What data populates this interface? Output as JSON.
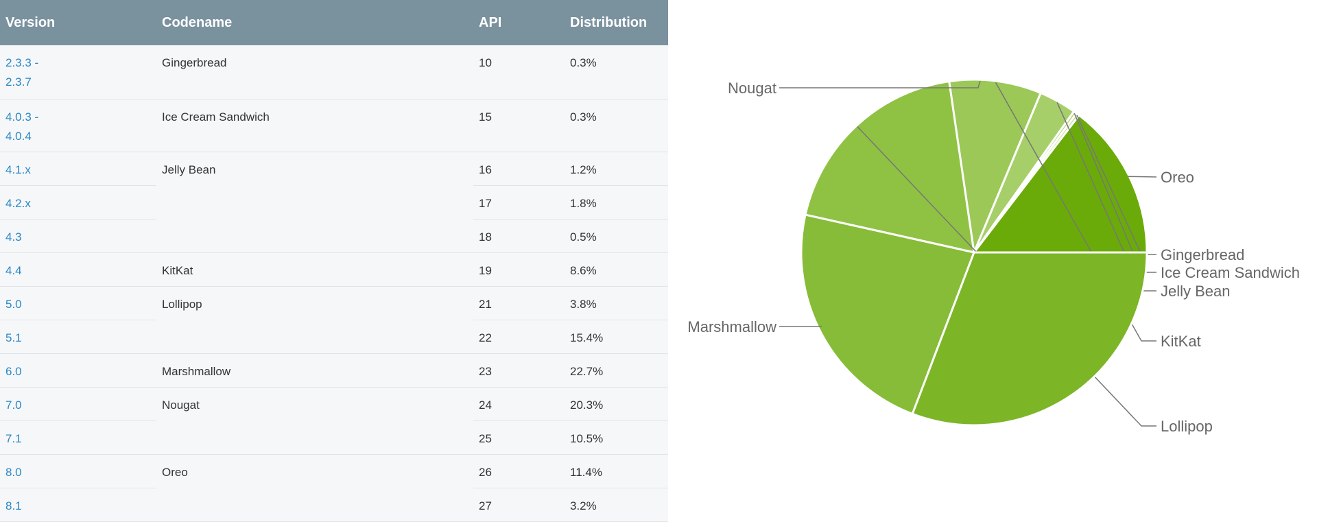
{
  "table": {
    "headers": [
      "Version",
      "Codename",
      "API",
      "Distribution"
    ],
    "rows": [
      {
        "version": "2.3.3 -\n2.3.7",
        "codename": "Gingerbread",
        "codename_span": 1,
        "api": "10",
        "distribution": "0.3%"
      },
      {
        "version": "4.0.3 -\n4.0.4",
        "codename": "Ice Cream Sandwich",
        "codename_span": 1,
        "api": "15",
        "distribution": "0.3%"
      },
      {
        "version": "4.1.x",
        "codename": "Jelly Bean",
        "codename_span": 3,
        "api": "16",
        "distribution": "1.2%"
      },
      {
        "version": "4.2.x",
        "codename": null,
        "api": "17",
        "distribution": "1.8%"
      },
      {
        "version": "4.3",
        "codename": null,
        "api": "18",
        "distribution": "0.5%"
      },
      {
        "version": "4.4",
        "codename": "KitKat",
        "codename_span": 1,
        "api": "19",
        "distribution": "8.6%"
      },
      {
        "version": "5.0",
        "codename": "Lollipop",
        "codename_span": 2,
        "api": "21",
        "distribution": "3.8%"
      },
      {
        "version": "5.1",
        "codename": null,
        "api": "22",
        "distribution": "15.4%"
      },
      {
        "version": "6.0",
        "codename": "Marshmallow",
        "codename_span": 1,
        "api": "23",
        "distribution": "22.7%"
      },
      {
        "version": "7.0",
        "codename": "Nougat",
        "codename_span": 2,
        "api": "24",
        "distribution": "20.3%"
      },
      {
        "version": "7.1",
        "codename": null,
        "api": "25",
        "distribution": "10.5%"
      },
      {
        "version": "8.0",
        "codename": "Oreo",
        "codename_span": 2,
        "api": "26",
        "distribution": "11.4%"
      },
      {
        "version": "8.1",
        "codename": null,
        "api": "27",
        "distribution": "3.2%"
      }
    ]
  },
  "chart_data": {
    "type": "pie",
    "labels": [
      "Oreo",
      "Gingerbread",
      "Ice Cream Sandwich",
      "Jelly Bean",
      "KitKat",
      "Lollipop",
      "Marshmallow",
      "Nougat"
    ],
    "values": [
      14.6,
      0.3,
      0.3,
      3.5,
      8.6,
      19.2,
      22.7,
      30.8
    ],
    "colors": [
      "#6aab09",
      "#c7e09c",
      "#b6d782",
      "#a6cf69",
      "#9bc856",
      "#8fc243",
      "#86bc37",
      "#7cb526"
    ]
  }
}
